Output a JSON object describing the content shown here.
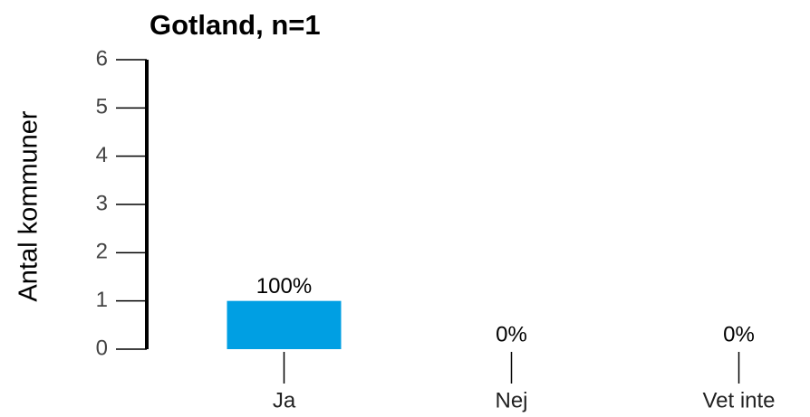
{
  "chart_data": {
    "type": "bar",
    "title": "Gotland, n=1",
    "ylabel": "Antal kommuner",
    "categories": [
      "Ja",
      "Nej",
      "Vet inte"
    ],
    "values": [
      1,
      0,
      0
    ],
    "value_labels": [
      "100%",
      "0%",
      "0%"
    ],
    "color": "#009fe3",
    "ylim": [
      0,
      6
    ],
    "yticks": [
      0,
      1,
      2,
      3,
      4,
      5,
      6
    ],
    "grid": false
  }
}
